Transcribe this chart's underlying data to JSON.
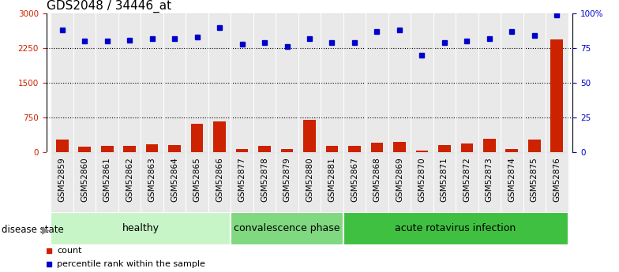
{
  "title": "GDS2048 / 34446_at",
  "samples": [
    "GSM52859",
    "GSM52860",
    "GSM52861",
    "GSM52862",
    "GSM52863",
    "GSM52864",
    "GSM52865",
    "GSM52866",
    "GSM52877",
    "GSM52878",
    "GSM52879",
    "GSM52880",
    "GSM52881",
    "GSM52867",
    "GSM52868",
    "GSM52869",
    "GSM52870",
    "GSM52871",
    "GSM52872",
    "GSM52873",
    "GSM52874",
    "GSM52875",
    "GSM52876"
  ],
  "counts": [
    270,
    120,
    140,
    140,
    175,
    160,
    620,
    670,
    80,
    135,
    65,
    710,
    145,
    145,
    200,
    220,
    35,
    155,
    185,
    300,
    65,
    275,
    2450
  ],
  "percentiles": [
    88,
    80,
    80,
    81,
    82,
    82,
    83,
    90,
    78,
    79,
    76,
    82,
    79,
    79,
    87,
    88,
    70,
    79,
    80,
    82,
    87,
    84,
    99
  ],
  "groups": [
    {
      "label": "healthy",
      "start": 0,
      "end": 8,
      "color": "#c8f5c8"
    },
    {
      "label": "convalescence phase",
      "start": 8,
      "end": 13,
      "color": "#80d880"
    },
    {
      "label": "acute rotavirus infection",
      "start": 13,
      "end": 23,
      "color": "#40c040"
    }
  ],
  "bar_color": "#cc2200",
  "dot_color": "#0000cc",
  "left_axis_color": "#cc2200",
  "right_axis_color": "#0000cc",
  "ylim_left": [
    0,
    3000
  ],
  "ylim_right": [
    0,
    100
  ],
  "yticks_left": [
    0,
    750,
    1500,
    2250,
    3000
  ],
  "ytick_labels_left": [
    "0",
    "750",
    "1500",
    "2250",
    "3000"
  ],
  "yticks_right": [
    0,
    25,
    50,
    75,
    100
  ],
  "ytick_labels_right": [
    "0",
    "25",
    "50",
    "75",
    "100%"
  ],
  "grid_values": [
    750,
    1500,
    2250
  ],
  "disease_state_label": "disease state",
  "legend_count": "count",
  "legend_pct": "percentile rank within the sample",
  "bar_width": 0.55,
  "title_fontsize": 11,
  "tick_fontsize": 7.5,
  "group_label_fontsize": 9
}
